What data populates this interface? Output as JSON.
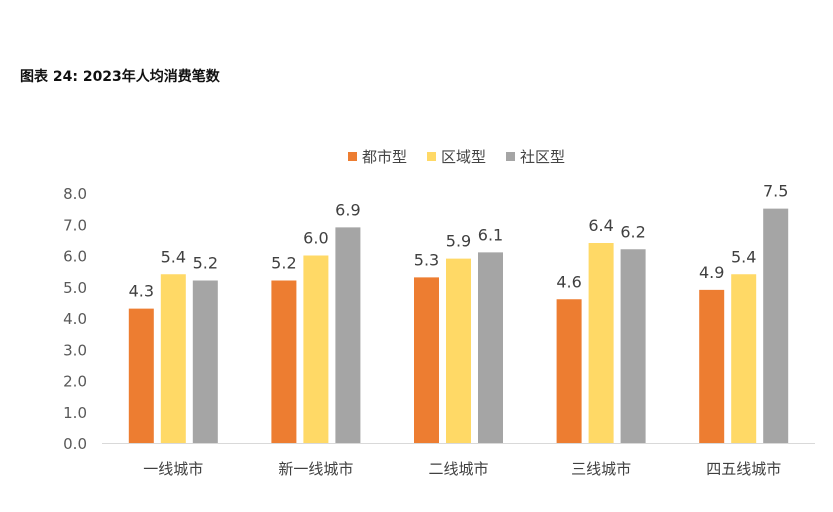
{
  "title": "图表 24: 2023年人均消费笔数",
  "chart_data": {
    "type": "bar",
    "title": "图表 24: 2023年人均消费笔数",
    "categories": [
      "一线城市",
      "新一线城市",
      "二线城市",
      "三线城市",
      "四五线城市"
    ],
    "series": [
      {
        "name": "都市型",
        "color": "#ED7D31",
        "values": [
          4.3,
          5.2,
          5.3,
          4.6,
          4.9
        ]
      },
      {
        "name": "区域型",
        "color": "#FFD966",
        "values": [
          5.4,
          6.0,
          5.9,
          6.4,
          5.4
        ]
      },
      {
        "name": "社区型",
        "color": "#A5A5A5",
        "values": [
          5.2,
          6.9,
          6.1,
          6.2,
          7.5
        ]
      }
    ],
    "ylim": [
      0,
      8
    ],
    "yticks": [
      "0.0",
      "1.0",
      "2.0",
      "3.0",
      "4.0",
      "5.0",
      "6.0",
      "7.0",
      "8.0"
    ],
    "xlabel": "",
    "ylabel": "",
    "grid": false,
    "legend": "top-center"
  }
}
